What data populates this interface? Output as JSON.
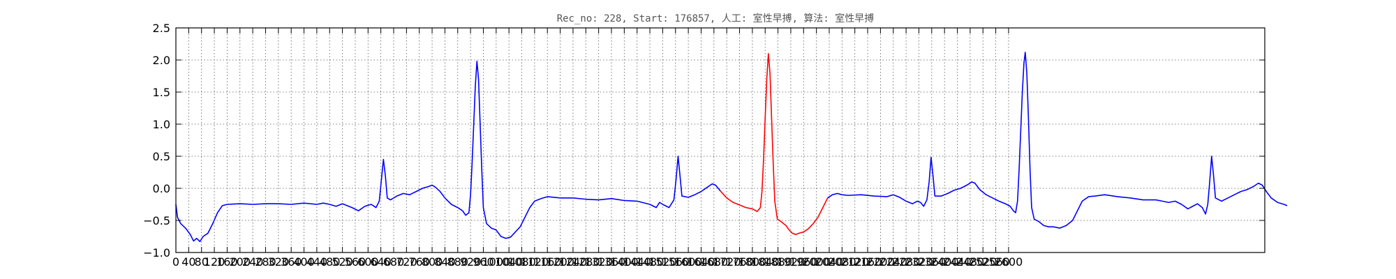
{
  "chart_data": {
    "type": "line",
    "title": "Rec_no: 228, Start: 176857, 人工: 室性早搏, 算法: 室性早搏",
    "xlabel": "",
    "ylabel": "",
    "xlim": [
      0,
      3400
    ],
    "ylim": [
      -1.0,
      2.5
    ],
    "grid": true,
    "grid_style": "dotted",
    "x_ticks": [
      0,
      40,
      80,
      120,
      160,
      200,
      240,
      280,
      320,
      360,
      400,
      440,
      480,
      520,
      560,
      600,
      640,
      680,
      720,
      760,
      800,
      840,
      880,
      920,
      960,
      1000,
      1040,
      1080,
      1120,
      1160,
      1200,
      1240,
      1280,
      1320,
      1360,
      1400,
      1440,
      1480,
      1520,
      1560,
      1600,
      1640,
      1680,
      1720,
      1760,
      1800,
      1840,
      1880,
      1920,
      1960,
      2000,
      2040,
      2080,
      2120,
      2160,
      2200,
      2240,
      2280,
      2320,
      2360,
      2400,
      2440,
      2480,
      2520,
      2560,
      2600
    ],
    "y_ticks": [
      -1.0,
      -0.5,
      0.0,
      0.5,
      1.0,
      1.5,
      2.0,
      2.5
    ],
    "y_tick_labels": [
      "−1.0",
      "−0.5",
      "0.0",
      "0.5",
      "1.0",
      "1.5",
      "2.0",
      "2.5"
    ],
    "series": [
      {
        "color": "#0000ff",
        "points": [
          [
            0,
            -0.25
          ],
          [
            5,
            -0.45
          ],
          [
            15,
            -0.55
          ],
          [
            30,
            -0.62
          ],
          [
            45,
            -0.72
          ],
          [
            55,
            -0.82
          ],
          [
            65,
            -0.78
          ],
          [
            75,
            -0.83
          ],
          [
            85,
            -0.75
          ],
          [
            100,
            -0.7
          ],
          [
            115,
            -0.55
          ],
          [
            130,
            -0.38
          ],
          [
            145,
            -0.27
          ],
          [
            160,
            -0.25
          ],
          [
            200,
            -0.24
          ],
          [
            240,
            -0.25
          ],
          [
            280,
            -0.24
          ],
          [
            320,
            -0.24
          ],
          [
            360,
            -0.25
          ],
          [
            400,
            -0.23
          ],
          [
            440,
            -0.25
          ],
          [
            460,
            -0.23
          ],
          [
            480,
            -0.25
          ],
          [
            500,
            -0.28
          ],
          [
            520,
            -0.24
          ],
          [
            550,
            -0.3
          ],
          [
            570,
            -0.35
          ],
          [
            590,
            -0.28
          ],
          [
            610,
            -0.25
          ],
          [
            625,
            -0.3
          ],
          [
            635,
            -0.2
          ],
          [
            642,
            0.15
          ],
          [
            648,
            0.45
          ],
          [
            654,
            0.2
          ],
          [
            660,
            -0.15
          ],
          [
            670,
            -0.18
          ],
          [
            690,
            -0.12
          ],
          [
            710,
            -0.08
          ],
          [
            730,
            -0.1
          ],
          [
            750,
            -0.05
          ],
          [
            770,
            0.0
          ],
          [
            790,
            0.03
          ],
          [
            800,
            0.05
          ],
          [
            810,
            0.02
          ],
          [
            825,
            -0.05
          ],
          [
            840,
            -0.15
          ],
          [
            860,
            -0.25
          ],
          [
            880,
            -0.3
          ],
          [
            895,
            -0.35
          ],
          [
            905,
            -0.42
          ],
          [
            915,
            -0.38
          ],
          [
            920,
            -0.1
          ],
          [
            925,
            0.4
          ],
          [
            930,
            1.0
          ],
          [
            935,
            1.6
          ],
          [
            940,
            1.98
          ],
          [
            945,
            1.7
          ],
          [
            950,
            1.0
          ],
          [
            955,
            0.3
          ],
          [
            960,
            -0.3
          ],
          [
            970,
            -0.55
          ],
          [
            985,
            -0.62
          ],
          [
            1000,
            -0.65
          ],
          [
            1015,
            -0.75
          ],
          [
            1030,
            -0.78
          ],
          [
            1045,
            -0.76
          ],
          [
            1060,
            -0.68
          ],
          [
            1075,
            -0.6
          ],
          [
            1090,
            -0.45
          ],
          [
            1105,
            -0.3
          ],
          [
            1120,
            -0.2
          ],
          [
            1140,
            -0.16
          ],
          [
            1160,
            -0.13
          ],
          [
            1200,
            -0.15
          ],
          [
            1240,
            -0.15
          ],
          [
            1280,
            -0.17
          ],
          [
            1320,
            -0.18
          ],
          [
            1360,
            -0.16
          ],
          [
            1400,
            -0.19
          ],
          [
            1440,
            -0.2
          ],
          [
            1480,
            -0.25
          ],
          [
            1500,
            -0.3
          ],
          [
            1510,
            -0.22
          ],
          [
            1520,
            -0.25
          ],
          [
            1540,
            -0.3
          ],
          [
            1555,
            -0.18
          ],
          [
            1562,
            0.15
          ],
          [
            1568,
            0.5
          ],
          [
            1574,
            0.2
          ],
          [
            1580,
            -0.12
          ],
          [
            1600,
            -0.14
          ],
          [
            1620,
            -0.1
          ],
          [
            1640,
            -0.05
          ],
          [
            1660,
            0.02
          ],
          [
            1675,
            0.07
          ],
          [
            1685,
            0.05
          ],
          [
            1700,
            -0.04
          ]
        ]
      },
      {
        "color": "#ff0000",
        "points": [
          [
            1700,
            -0.04
          ],
          [
            1720,
            -0.15
          ],
          [
            1740,
            -0.22
          ],
          [
            1760,
            -0.26
          ],
          [
            1780,
            -0.3
          ],
          [
            1800,
            -0.32
          ],
          [
            1815,
            -0.36
          ],
          [
            1825,
            -0.3
          ],
          [
            1830,
            -0.05
          ],
          [
            1835,
            0.45
          ],
          [
            1840,
            1.1
          ],
          [
            1845,
            1.7
          ],
          [
            1850,
            2.1
          ],
          [
            1855,
            1.8
          ],
          [
            1860,
            1.1
          ],
          [
            1865,
            0.4
          ],
          [
            1870,
            -0.2
          ],
          [
            1878,
            -0.48
          ],
          [
            1890,
            -0.52
          ],
          [
            1905,
            -0.58
          ],
          [
            1915,
            -0.65
          ],
          [
            1925,
            -0.7
          ],
          [
            1935,
            -0.72
          ],
          [
            1945,
            -0.7
          ],
          [
            1960,
            -0.68
          ],
          [
            1975,
            -0.63
          ],
          [
            1990,
            -0.55
          ],
          [
            2005,
            -0.45
          ],
          [
            2020,
            -0.3
          ],
          [
            2035,
            -0.15
          ]
        ]
      },
      {
        "color": "#0000ff",
        "points": [
          [
            2035,
            -0.15
          ],
          [
            2050,
            -0.1
          ],
          [
            2065,
            -0.08
          ],
          [
            2080,
            -0.1
          ],
          [
            2100,
            -0.11
          ],
          [
            2140,
            -0.1
          ],
          [
            2180,
            -0.12
          ],
          [
            2220,
            -0.13
          ],
          [
            2240,
            -0.1
          ],
          [
            2260,
            -0.14
          ],
          [
            2280,
            -0.2
          ],
          [
            2300,
            -0.24
          ],
          [
            2315,
            -0.2
          ],
          [
            2325,
            -0.22
          ],
          [
            2335,
            -0.28
          ],
          [
            2345,
            -0.18
          ],
          [
            2352,
            0.1
          ],
          [
            2358,
            0.48
          ],
          [
            2364,
            0.2
          ],
          [
            2370,
            -0.12
          ],
          [
            2390,
            -0.12
          ],
          [
            2410,
            -0.08
          ],
          [
            2430,
            -0.03
          ],
          [
            2450,
            0.0
          ],
          [
            2470,
            0.05
          ],
          [
            2485,
            0.1
          ],
          [
            2495,
            0.08
          ],
          [
            2510,
            -0.02
          ],
          [
            2530,
            -0.1
          ],
          [
            2550,
            -0.15
          ],
          [
            2570,
            -0.2
          ],
          [
            2590,
            -0.24
          ],
          [
            2605,
            -0.28
          ],
          [
            2615,
            -0.35
          ],
          [
            2622,
            -0.38
          ],
          [
            2628,
            -0.2
          ],
          [
            2633,
            0.3
          ],
          [
            2638,
            0.9
          ],
          [
            2643,
            1.5
          ],
          [
            2648,
            1.95
          ],
          [
            2652,
            2.12
          ],
          [
            2657,
            1.8
          ],
          [
            2662,
            1.1
          ],
          [
            2667,
            0.3
          ],
          [
            2672,
            -0.3
          ],
          [
            2680,
            -0.48
          ],
          [
            2695,
            -0.52
          ],
          [
            2710,
            -0.58
          ],
          [
            2725,
            -0.6
          ],
          [
            2740,
            -0.6
          ],
          [
            2760,
            -0.62
          ],
          [
            2780,
            -0.58
          ],
          [
            2800,
            -0.5
          ],
          [
            2815,
            -0.35
          ],
          [
            2830,
            -0.2
          ],
          [
            2850,
            -0.13
          ],
          [
            2870,
            -0.12
          ],
          [
            2900,
            -0.1
          ],
          [
            2940,
            -0.13
          ],
          [
            2980,
            -0.15
          ],
          [
            3020,
            -0.18
          ],
          [
            3060,
            -0.18
          ],
          [
            3080,
            -0.2
          ],
          [
            3100,
            -0.22
          ],
          [
            3120,
            -0.2
          ],
          [
            3140,
            -0.25
          ],
          [
            3160,
            -0.32
          ],
          [
            3175,
            -0.28
          ],
          [
            3190,
            -0.24
          ],
          [
            3205,
            -0.3
          ],
          [
            3215,
            -0.4
          ],
          [
            3222,
            -0.25
          ],
          [
            3228,
            0.1
          ],
          [
            3234,
            0.5
          ],
          [
            3240,
            0.2
          ],
          [
            3246,
            -0.15
          ],
          [
            3265,
            -0.2
          ],
          [
            3285,
            -0.15
          ],
          [
            3305,
            -0.1
          ],
          [
            3325,
            -0.05
          ],
          [
            3345,
            -0.02
          ],
          [
            3365,
            0.03
          ],
          [
            3380,
            0.08
          ],
          [
            3392,
            0.05
          ],
          [
            3405,
            -0.05
          ],
          [
            3420,
            -0.15
          ],
          [
            3440,
            -0.22
          ],
          [
            3460,
            -0.25
          ],
          [
            3470,
            -0.27
          ]
        ]
      }
    ]
  }
}
